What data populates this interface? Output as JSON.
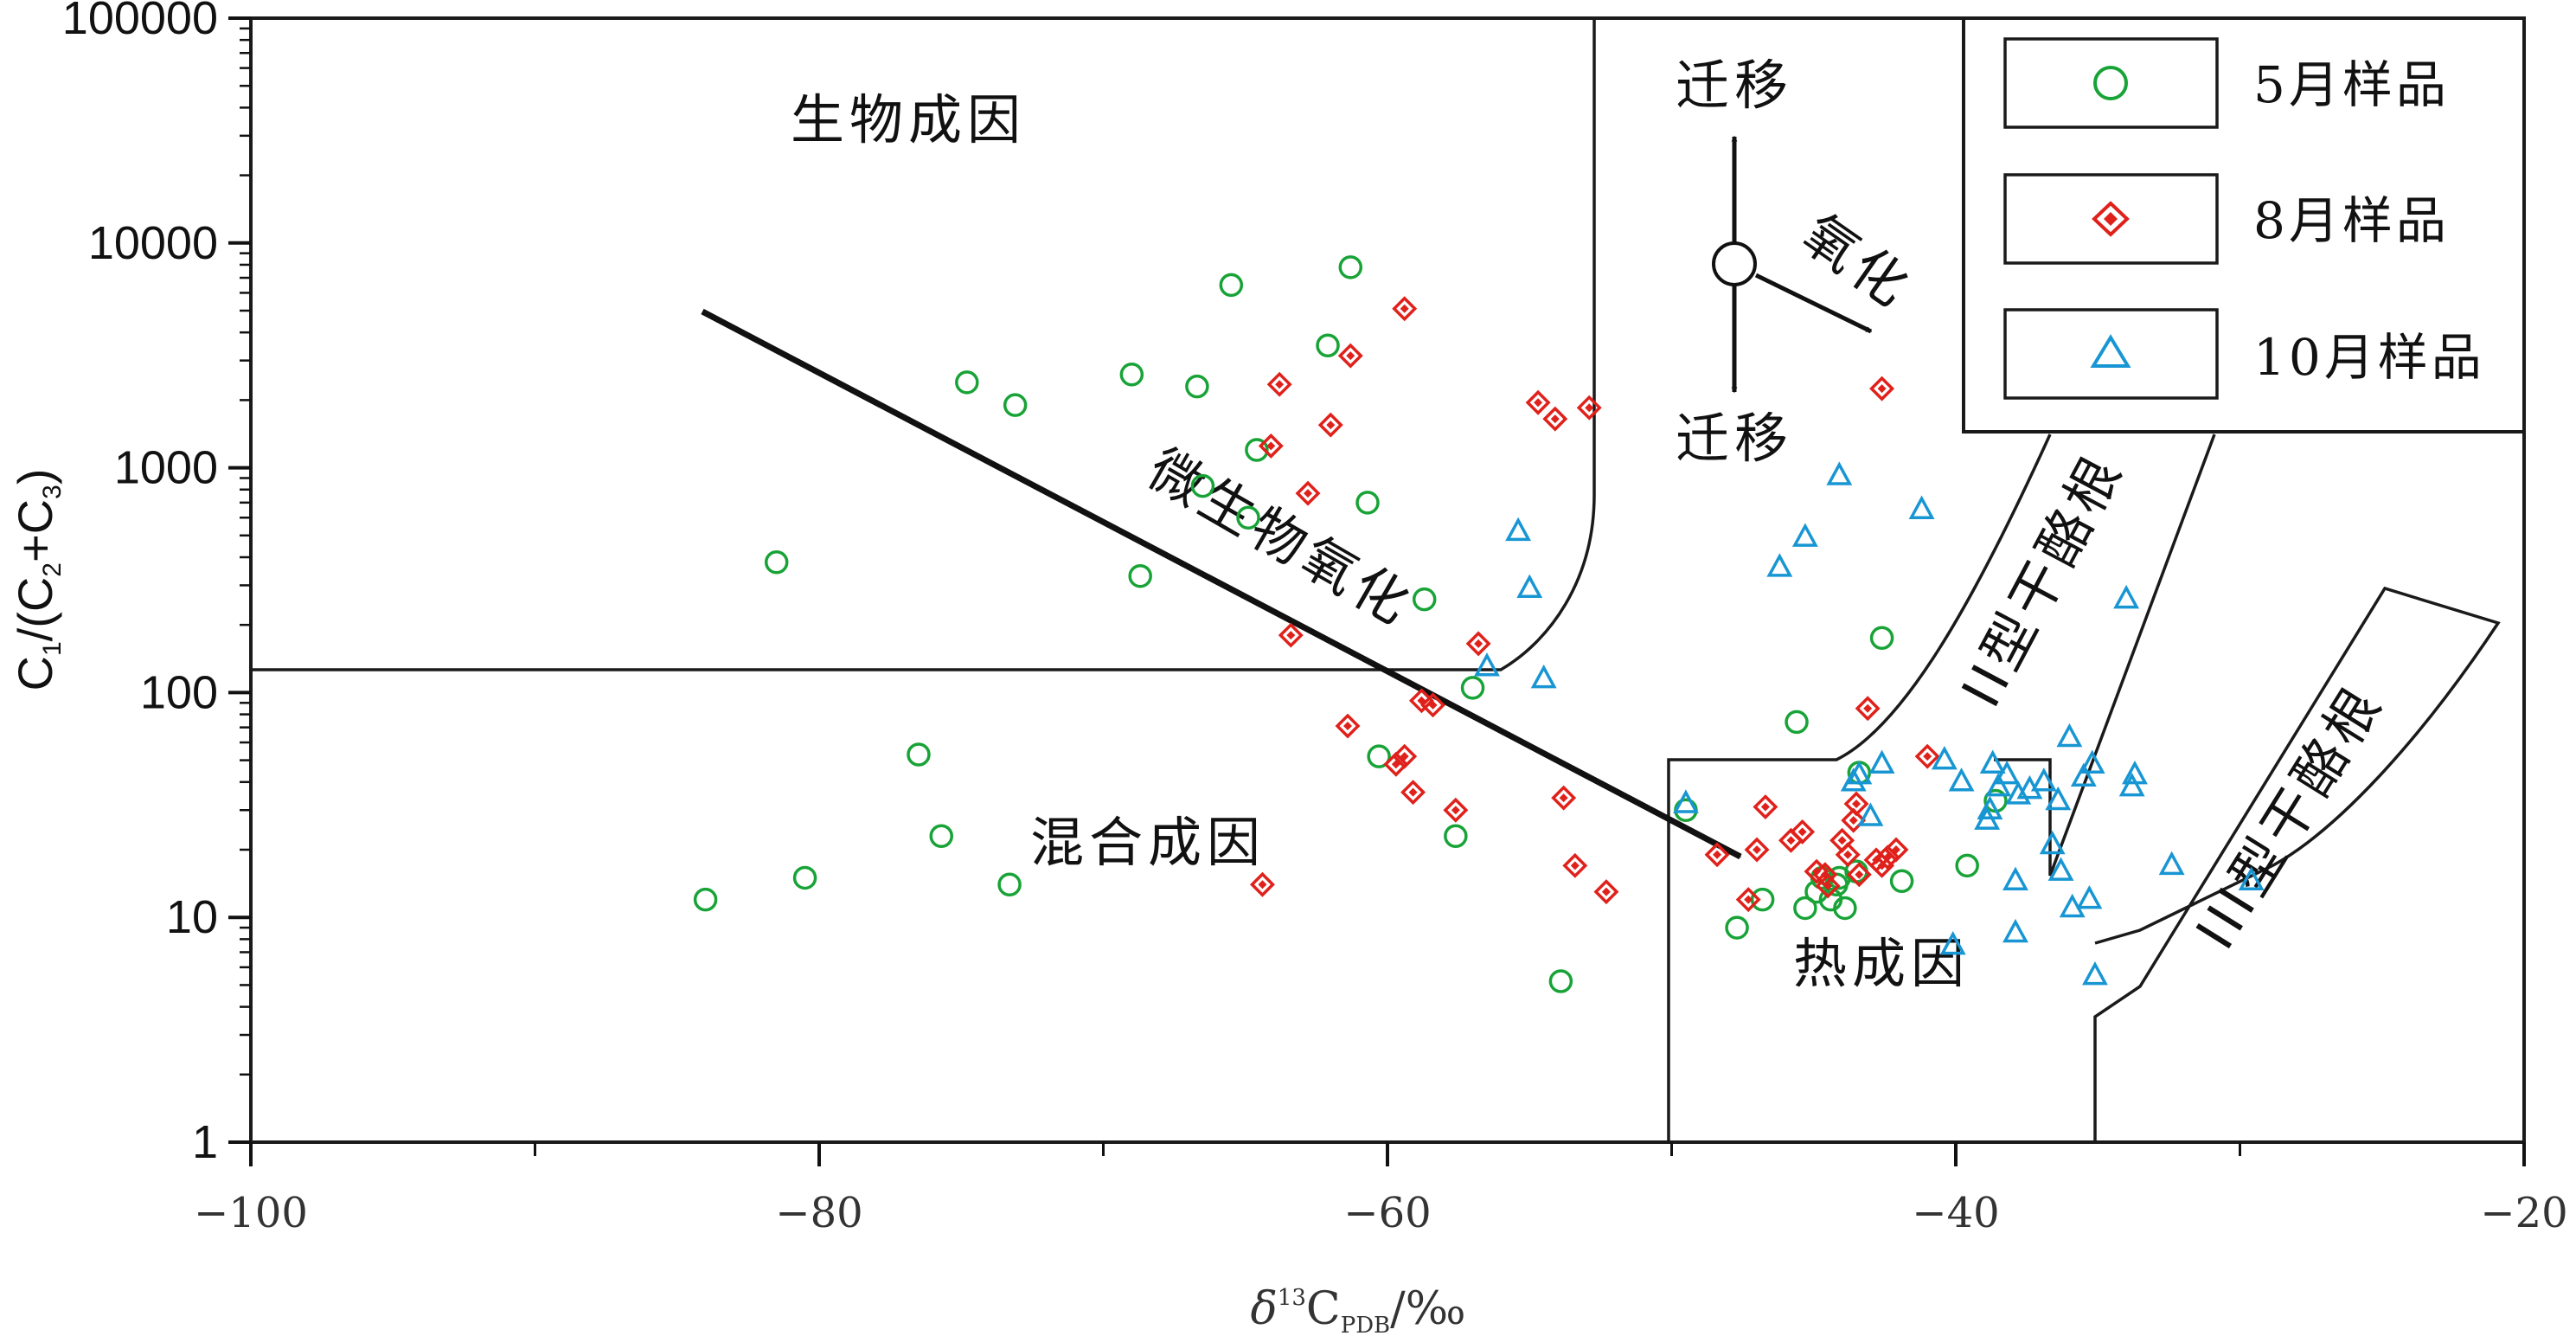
{
  "chart_data": {
    "type": "scatter",
    "xlabel": {
      "delta": "δ",
      "sup": "13",
      "c": "C",
      "sub": "PDB",
      "tail": "/‰"
    },
    "ylabel": {
      "a": "C",
      "s1": "1",
      "b": "/(C",
      "s2": "2",
      "c": "+C",
      "s3": "3",
      "d": ")"
    },
    "xlim": [
      -100,
      -20
    ],
    "ylim": [
      1,
      100000
    ],
    "yscale": "log",
    "grid": false,
    "legend_position": "top-right",
    "x_ticks": [
      {
        "value": -100,
        "label": "−100"
      },
      {
        "value": -80,
        "label": "−80"
      },
      {
        "value": -60,
        "label": "−60"
      },
      {
        "value": -40,
        "label": "−40"
      },
      {
        "value": -20,
        "label": "−20"
      }
    ],
    "y_ticks": [
      {
        "value": 1,
        "label": "1"
      },
      {
        "value": 10,
        "label": "10"
      },
      {
        "value": 100,
        "label": "100"
      },
      {
        "value": 1000,
        "label": "1000"
      },
      {
        "value": 10000,
        "label": "10000"
      },
      {
        "value": 100000,
        "label": "100000"
      }
    ],
    "region_labels": {
      "biogenic": "生物成因",
      "mixed": "混合成因",
      "thermogenic": "热成因",
      "type_ii": "II型干酪根",
      "type_iii": "III型干酪根",
      "microbial_oxidation": "微生物氧化",
      "migration_up": "迁移",
      "migration_down": "迁移",
      "oxidation": "氧化"
    },
    "series": [
      {
        "name": "5月样品",
        "marker": "circle",
        "color": "#18a337",
        "points": [
          [
            -84,
            12
          ],
          [
            -81.5,
            380
          ],
          [
            -80.5,
            15
          ],
          [
            -76.5,
            53
          ],
          [
            -75.7,
            23
          ],
          [
            -74.8,
            2400
          ],
          [
            -73.3,
            14
          ],
          [
            -73.1,
            1900
          ],
          [
            -69,
            2600
          ],
          [
            -68.7,
            330
          ],
          [
            -66.7,
            2300
          ],
          [
            -66.5,
            830
          ],
          [
            -65.5,
            6500
          ],
          [
            -64.9,
            600
          ],
          [
            -64.6,
            1200
          ],
          [
            -62.1,
            3500
          ],
          [
            -61.3,
            7800
          ],
          [
            -60.3,
            52
          ],
          [
            -60.7,
            700
          ],
          [
            -58.7,
            260
          ],
          [
            -57.6,
            23
          ],
          [
            -57,
            105
          ],
          [
            -53.9,
            5.2
          ],
          [
            -49.5,
            30
          ],
          [
            -47.7,
            9
          ],
          [
            -46.8,
            12
          ],
          [
            -45.6,
            74
          ],
          [
            -45.3,
            11
          ],
          [
            -44.9,
            13
          ],
          [
            -44.7,
            15
          ],
          [
            -44.4,
            12
          ],
          [
            -44.2,
            14
          ],
          [
            -44.1,
            15
          ],
          [
            -43.9,
            11
          ],
          [
            -43.5,
            16
          ],
          [
            -43.4,
            44
          ],
          [
            -42.6,
            175
          ],
          [
            -41.9,
            14.5
          ],
          [
            -39.6,
            17
          ],
          [
            -38.6,
            33
          ]
        ]
      },
      {
        "name": "8月样品",
        "marker": "diamond",
        "color": "#e0211b",
        "points": [
          [
            -64.4,
            14
          ],
          [
            -64.1,
            1250
          ],
          [
            -63.8,
            2350
          ],
          [
            -63.4,
            180
          ],
          [
            -62.8,
            770
          ],
          [
            -62,
            1550
          ],
          [
            -61.3,
            3150
          ],
          [
            -61.4,
            71
          ],
          [
            -59.4,
            5100
          ],
          [
            -59.7,
            48
          ],
          [
            -59.4,
            52
          ],
          [
            -59.1,
            36
          ],
          [
            -58.8,
            92
          ],
          [
            -58.4,
            88
          ],
          [
            -57.6,
            30
          ],
          [
            -56.8,
            165
          ],
          [
            -54.7,
            1950
          ],
          [
            -54.1,
            1650
          ],
          [
            -53.8,
            34
          ],
          [
            -53.4,
            17
          ],
          [
            -52.9,
            1850
          ],
          [
            -52.3,
            13
          ],
          [
            -48.4,
            19
          ],
          [
            -47.3,
            12
          ],
          [
            -47,
            20
          ],
          [
            -46.7,
            31
          ],
          [
            -45.8,
            22
          ],
          [
            -45.4,
            24
          ],
          [
            -44.9,
            16
          ],
          [
            -44.6,
            15.5
          ],
          [
            -44.5,
            13.8
          ],
          [
            -44,
            22
          ],
          [
            -43.8,
            19
          ],
          [
            -43.6,
            27
          ],
          [
            -43.5,
            32
          ],
          [
            -43.4,
            15.5
          ],
          [
            -43.1,
            85
          ],
          [
            -42.8,
            18
          ],
          [
            -42.6,
            17
          ],
          [
            -42.4,
            18.5
          ],
          [
            -42.1,
            20
          ],
          [
            -42.6,
            2250
          ],
          [
            -41,
            52
          ]
        ]
      },
      {
        "name": "10月样品",
        "marker": "triangle",
        "color": "#1896d3",
        "points": [
          [
            -55.4,
            520
          ],
          [
            -55,
            290
          ],
          [
            -54.5,
            115
          ],
          [
            -56.5,
            130
          ],
          [
            -49.5,
            32
          ],
          [
            -46.2,
            360
          ],
          [
            -45.3,
            490
          ],
          [
            -44.1,
            920
          ],
          [
            -41.2,
            650
          ],
          [
            -43.4,
            43
          ],
          [
            -43.6,
            40
          ],
          [
            -43,
            28
          ],
          [
            -42.6,
            48
          ],
          [
            -40.4,
            50
          ],
          [
            -40.1,
            7.5
          ],
          [
            -39.8,
            40
          ],
          [
            -38.7,
            48
          ],
          [
            -38.5,
            38
          ],
          [
            -38.8,
            30
          ],
          [
            -38.9,
            27
          ],
          [
            -38.2,
            43
          ],
          [
            -37.8,
            35
          ],
          [
            -37.4,
            37
          ],
          [
            -36.9,
            40
          ],
          [
            -36.4,
            33
          ],
          [
            -36.6,
            21
          ],
          [
            -36.3,
            16
          ],
          [
            -35.9,
            11
          ],
          [
            -35.3,
            12
          ],
          [
            -35.1,
            5.5
          ],
          [
            -36,
            63
          ],
          [
            -35.5,
            42
          ],
          [
            -35.2,
            48
          ],
          [
            -33.8,
            38
          ],
          [
            -34,
            260
          ],
          [
            -33.7,
            43
          ],
          [
            -37.9,
            14.5
          ],
          [
            -37.9,
            8.5
          ],
          [
            -32.4,
            17
          ],
          [
            -29.6,
            14.5
          ]
        ]
      }
    ]
  }
}
